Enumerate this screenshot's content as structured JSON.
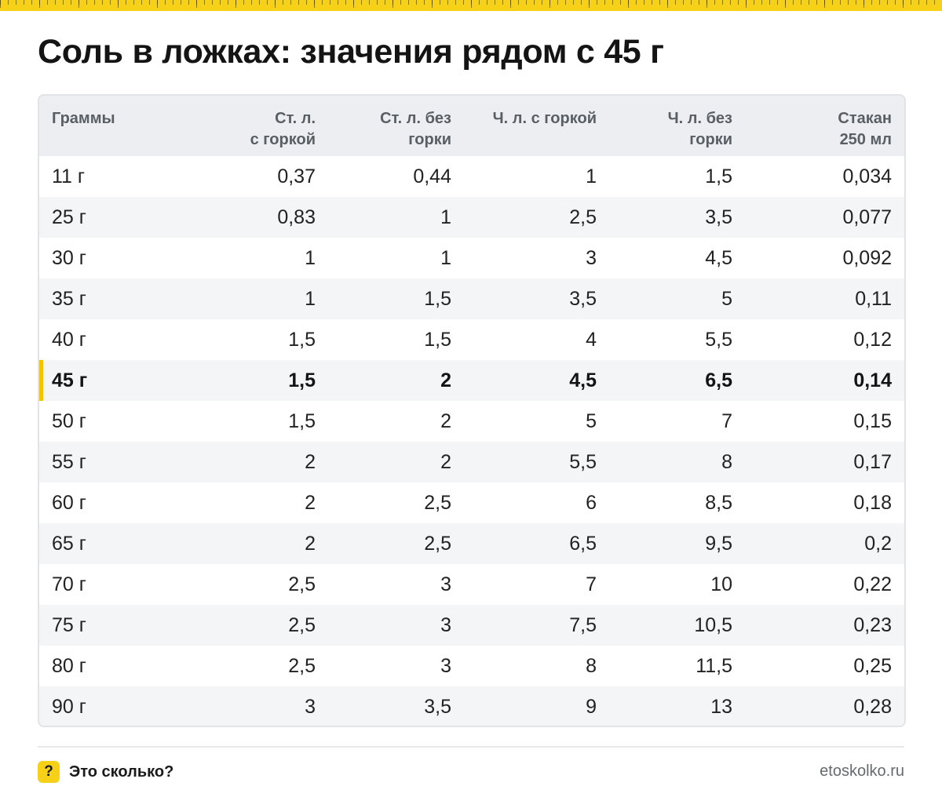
{
  "title": "Соль в ложках: значения рядом с 45 г",
  "table": {
    "headers": [
      [
        "Граммы"
      ],
      [
        "Ст. л.",
        "с горкой"
      ],
      [
        "Ст. л. без",
        "горки"
      ],
      [
        "Ч. л. с горкой"
      ],
      [
        "Ч. л. без",
        "горки"
      ],
      [
        "Стакан",
        "250 мл"
      ]
    ],
    "highlight_row": 5,
    "rows": [
      [
        "11 г",
        "0,37",
        "0,44",
        "1",
        "1,5",
        "0,034"
      ],
      [
        "25 г",
        "0,83",
        "1",
        "2,5",
        "3,5",
        "0,077"
      ],
      [
        "30 г",
        "1",
        "1",
        "3",
        "4,5",
        "0,092"
      ],
      [
        "35 г",
        "1",
        "1,5",
        "3,5",
        "5",
        "0,11"
      ],
      [
        "40 г",
        "1,5",
        "1,5",
        "4",
        "5,5",
        "0,12"
      ],
      [
        "45 г",
        "1,5",
        "2",
        "4,5",
        "6,5",
        "0,14"
      ],
      [
        "50 г",
        "1,5",
        "2",
        "5",
        "7",
        "0,15"
      ],
      [
        "55 г",
        "2",
        "2",
        "5,5",
        "8",
        "0,17"
      ],
      [
        "60 г",
        "2",
        "2,5",
        "6",
        "8,5",
        "0,18"
      ],
      [
        "65 г",
        "2",
        "2,5",
        "6,5",
        "9,5",
        "0,2"
      ],
      [
        "70 г",
        "2,5",
        "3",
        "7",
        "10",
        "0,22"
      ],
      [
        "75 г",
        "2,5",
        "3",
        "7,5",
        "10,5",
        "0,23"
      ],
      [
        "80 г",
        "2,5",
        "3",
        "8",
        "11,5",
        "0,25"
      ],
      [
        "90 г",
        "3",
        "3,5",
        "9",
        "13",
        "0,28"
      ]
    ]
  },
  "footer": {
    "icon": "question-mark-icon",
    "icon_glyph": "?",
    "brand": "Это сколько?",
    "site": "etoskolko.ru"
  },
  "colors": {
    "accent": "#f7d117",
    "highlight_bg": "#fff2c2",
    "header_bg": "#eceef1",
    "stripe_bg": "#f4f5f7"
  }
}
